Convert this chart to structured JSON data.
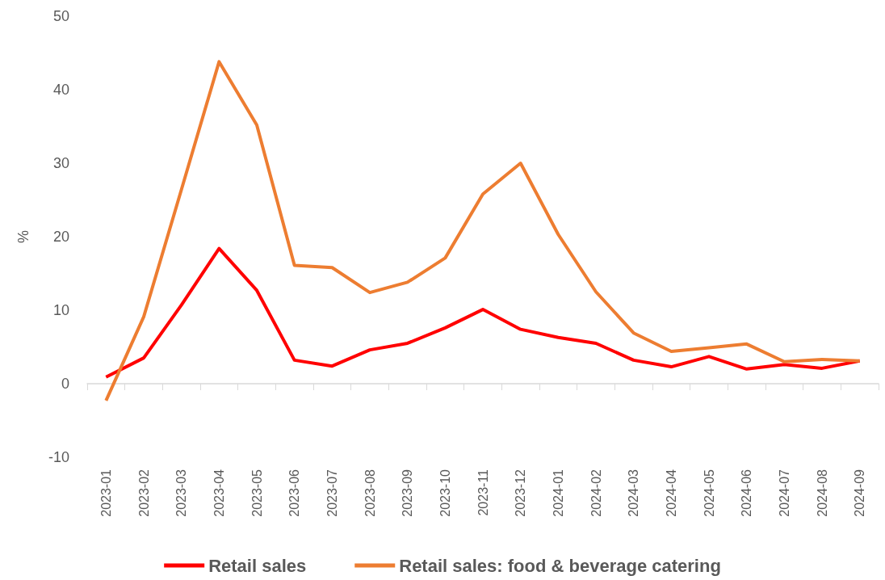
{
  "chart_data": {
    "type": "line",
    "ylabel": "%",
    "categories": [
      "2023-01",
      "2023-02",
      "2023-03",
      "2023-04",
      "2023-05",
      "2023-06",
      "2023-07",
      "2023-08",
      "2023-09",
      "2023-10",
      "2023-11",
      "2023-12",
      "2024-01",
      "2024-02",
      "2024-03",
      "2024-04",
      "2024-05",
      "2024-06",
      "2024-07",
      "2024-08",
      "2024-09"
    ],
    "series": [
      {
        "name": "Retail sales",
        "color": "#ff0000",
        "values": [
          0.9,
          3.5,
          10.7,
          18.4,
          12.7,
          3.2,
          2.4,
          4.6,
          5.5,
          7.6,
          10.1,
          7.4,
          6.3,
          5.5,
          3.2,
          2.3,
          3.7,
          2.0,
          2.6,
          2.1,
          3.1
        ]
      },
      {
        "name": "Retail sales: food & beverage catering",
        "color": "#ed7d31",
        "values": [
          -2.3,
          9.1,
          26.4,
          43.8,
          35.2,
          16.1,
          15.8,
          12.4,
          13.8,
          17.1,
          25.8,
          30.0,
          20.3,
          12.5,
          6.9,
          4.4,
          4.9,
          5.4,
          3.0,
          3.3,
          3.1
        ]
      }
    ],
    "ylim": [
      -10,
      50
    ],
    "yticks": [
      -10,
      0,
      10,
      20,
      30,
      40,
      50
    ],
    "legend": "bottom",
    "marker": "none",
    "line_style": "solid"
  }
}
